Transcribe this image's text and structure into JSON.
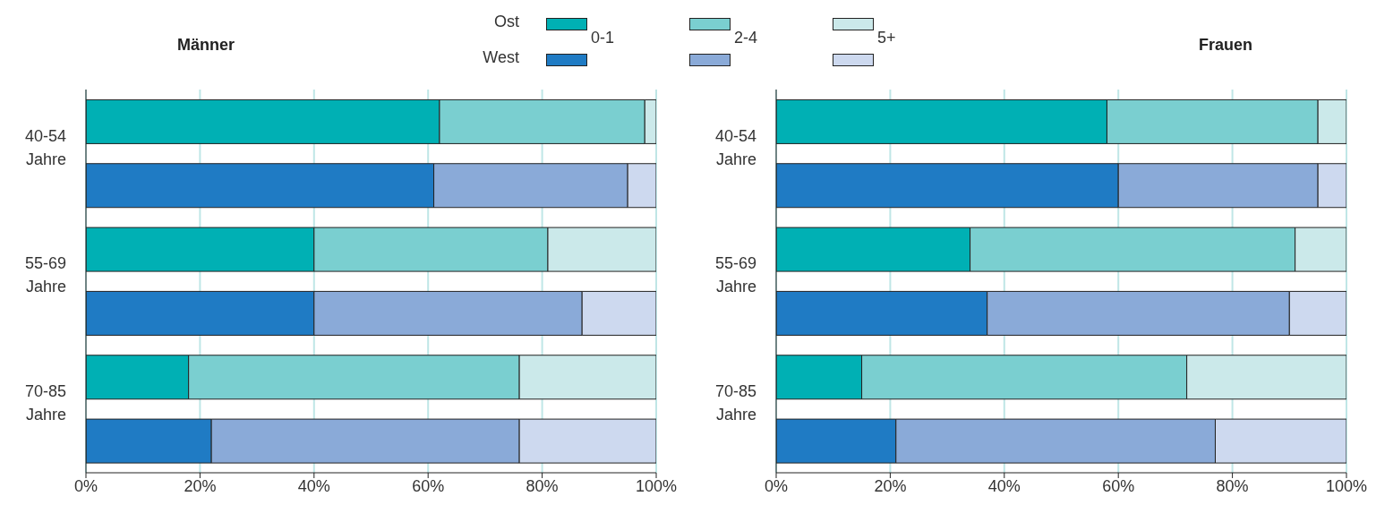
{
  "chart_data": [
    {
      "type": "bar",
      "orientation": "horizontal",
      "stacked": true,
      "title": "Männer",
      "categories": [
        "40-54 Jahre",
        null,
        "55-69 Jahre",
        null,
        "70-85 Jahre",
        null
      ],
      "series": [
        {
          "name": "0-1",
          "colors": [
            "#00b0b4",
            "#1f7bc4",
            "#00b0b4",
            "#1f7bc4",
            "#00b0b4",
            "#1f7bc4"
          ],
          "values": [
            62,
            61,
            40,
            40,
            18,
            22
          ]
        },
        {
          "name": "2-4",
          "colors": [
            "#7acfd0",
            "#8aaad8",
            "#7acfd0",
            "#8aaad8",
            "#7acfd0",
            "#8aaad8"
          ],
          "values": [
            36,
            34,
            41,
            47,
            58,
            54
          ]
        },
        {
          "name": "5+",
          "colors": [
            "#cbe9ea",
            "#cdd9ef",
            "#cbe9ea",
            "#cdd9ef",
            "#cbe9ea",
            "#cdd9ef"
          ],
          "values": [
            2,
            5,
            19,
            13,
            24,
            24
          ]
        }
      ],
      "annotations": [
        "Ost",
        "West"
      ],
      "legend": "top",
      "grid": "x",
      "xlim": [
        0,
        100
      ],
      "xticks": [
        {
          "value": 0,
          "label": "0%"
        },
        {
          "value": 20,
          "label": "20%"
        },
        {
          "value": 40,
          "label": "40%"
        },
        {
          "value": 60,
          "label": "60%"
        },
        {
          "value": 80,
          "label": "80%"
        },
        {
          "value": 100,
          "label": "100%"
        }
      ]
    },
    {
      "type": "bar",
      "orientation": "horizontal",
      "stacked": true,
      "title": "Frauen",
      "categories": [
        "40-54 Jahre",
        null,
        "55-69 Jahre",
        null,
        "70-85 Jahre",
        null
      ],
      "series": [
        {
          "colors": [
            "#00b0b4",
            "#1f7bc4",
            "#00b0b4",
            "#1f7bc4",
            "#00b0b4",
            "#1f7bc4"
          ],
          "values": [
            58,
            60,
            34,
            37,
            15,
            21
          ]
        },
        {
          "colors": [
            "#7acfd0",
            "#8aaad8",
            "#7acfd0",
            "#8aaad8",
            "#7acfd0",
            "#8aaad8"
          ],
          "values": [
            37,
            35,
            57,
            53,
            57,
            56
          ]
        },
        {
          "colors": [
            "#cbe9ea",
            "#cdd9ef",
            "#cbe9ea",
            "#cdd9ef",
            "#cbe9ea",
            "#cdd9ef"
          ],
          "values": [
            5,
            5,
            9,
            10,
            28,
            23
          ]
        }
      ],
      "grid": "x",
      "xlim": [
        0,
        100
      ],
      "xticks": [
        {
          "value": 0,
          "label": "0%"
        },
        {
          "value": 20,
          "label": "20%"
        },
        {
          "value": 40,
          "label": "40%"
        },
        {
          "value": 60,
          "label": "60%"
        },
        {
          "value": 80,
          "label": "80%"
        },
        {
          "value": 100,
          "label": "100%"
        }
      ]
    }
  ]
}
